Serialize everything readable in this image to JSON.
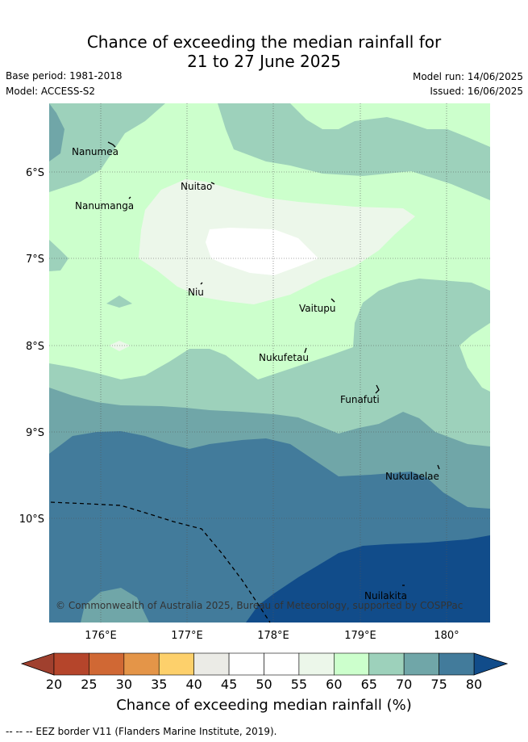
{
  "title_line1": "Chance of exceeding the median rainfall for",
  "title_line2": "21 to 27 June 2025",
  "base_period": "Base period: 1981-2018",
  "model": "Model: ACCESS-S2",
  "model_run": "Model run: 14/06/2025",
  "issued": "Issued: 16/06/2025",
  "lat_labels": [
    "6°S",
    "7°S",
    "8°S",
    "9°S",
    "10°S"
  ],
  "lon_labels": [
    "176°E",
    "177°E",
    "178°E",
    "179°E",
    "180°"
  ],
  "places": [
    "Nanumea",
    "Nuitao",
    "Nanumanga",
    "Niu",
    "Vaitupu",
    "Nukufetau",
    "Funafuti",
    "Nukulaelae",
    "Nuilakita"
  ],
  "copyright": "© Commonwealth of Australia 2025, Bureau of Meteorology, supported by COSPPac",
  "colorbar": {
    "ticks": [
      "20",
      "25",
      "30",
      "35",
      "40",
      "45",
      "50",
      "55",
      "60",
      "65",
      "70",
      "75",
      "80"
    ],
    "colors": [
      "#b5452b",
      "#d06834",
      "#e49548",
      "#fdd06b",
      "#ebebe6",
      "#ffffff",
      "#ffffff",
      "#ecf7ea",
      "#ccffcc",
      "#9dd1bb",
      "#70a6a8",
      "#427b9b"
    ],
    "under_color": "#a0402e",
    "over_color": "#114c8a",
    "title": "Chance of exceeding median rainfall (%)"
  },
  "legend_text": "--  --  -- EEZ border V11 (Flanders Marine Institute, 2019).",
  "colors": {
    "c55_60": "#ecf7ea",
    "c60_65": "#ccffcc",
    "c65_70": "#9dd1bb",
    "c70_75": "#70a6a8",
    "c75_80": "#427b9b",
    "c80": "#114c8a"
  }
}
